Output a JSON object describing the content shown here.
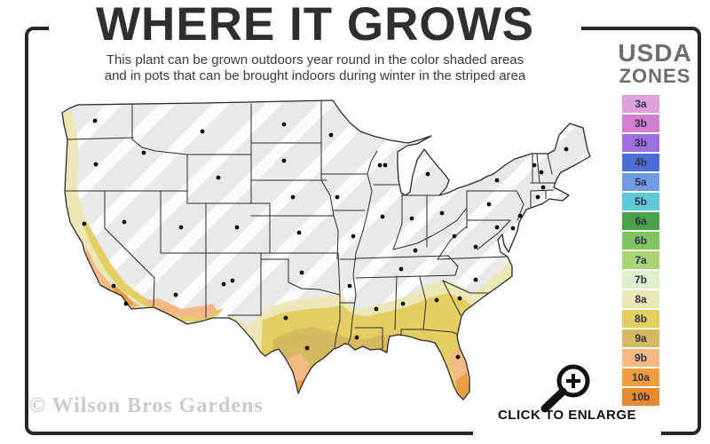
{
  "title": "WHERE IT GROWS",
  "subtitle_line1": "This plant can be grown outdoors year round in the color shaded areas",
  "subtitle_line2": "and in pots that can be brought indoors during winter in the striped area",
  "legend": {
    "heading_line1": "USDA",
    "heading_line2": "ZONES",
    "zones": [
      {
        "label": "3a",
        "color": "#dda0dc"
      },
      {
        "label": "3b",
        "color": "#d27fd2"
      },
      {
        "label": "3b",
        "color": "#9f6fe0"
      },
      {
        "label": "4b",
        "color": "#4a6fd4"
      },
      {
        "label": "5a",
        "color": "#6f9be3"
      },
      {
        "label": "5b",
        "color": "#5fc9d8"
      },
      {
        "label": "6a",
        "color": "#46a24b"
      },
      {
        "label": "6b",
        "color": "#7fc45f"
      },
      {
        "label": "7a",
        "color": "#a9d375"
      },
      {
        "label": "7b",
        "color": "#dfeecb"
      },
      {
        "label": "8a",
        "color": "#ebe7b6"
      },
      {
        "label": "8b",
        "color": "#e2ce62"
      },
      {
        "label": "9a",
        "color": "#d5b95f"
      },
      {
        "label": "9b",
        "color": "#f4b985"
      },
      {
        "label": "10a",
        "color": "#ee9d42"
      },
      {
        "label": "10b",
        "color": "#e58a30"
      }
    ]
  },
  "map": {
    "striped_area_color": "#e9e9ec",
    "stripe_color": "#fbfbfd",
    "state_border_color": "#2a2a2a"
  },
  "footer": {
    "watermark": "© Wilson Bros Gardens",
    "enlarge_label": "CLICK TO ENLARGE"
  }
}
